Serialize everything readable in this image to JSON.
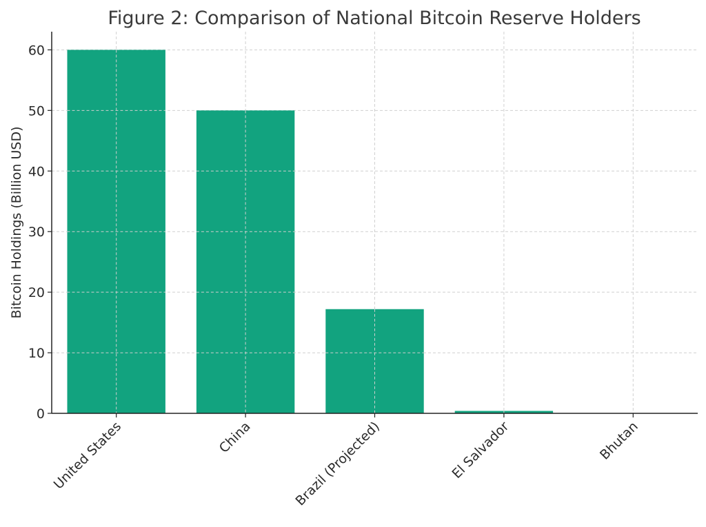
{
  "chart_data": {
    "type": "bar",
    "title": "Figure 2: Comparison of National Bitcoin Reserve Holders",
    "xlabel": "",
    "ylabel": "Bitcoin Holdings (Billion USD)",
    "categories": [
      "United States",
      "China",
      "Brazil (Projected)",
      "El Salvador",
      "Bhutan"
    ],
    "values": [
      60,
      50,
      17.2,
      0.4,
      0
    ],
    "ylim": [
      0,
      63
    ],
    "yticks": [
      0,
      10,
      20,
      30,
      40,
      50,
      60
    ],
    "grid": true,
    "bar_color": "#12a37f"
  }
}
